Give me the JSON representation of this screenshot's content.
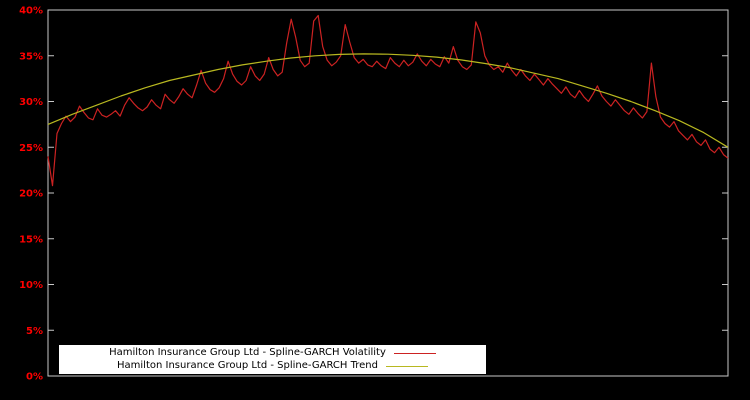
{
  "chart_data": {
    "type": "line",
    "title": "",
    "xlabel": "",
    "ylabel": "",
    "ylim": [
      0,
      40
    ],
    "yticks": [
      0,
      5,
      10,
      15,
      20,
      25,
      30,
      35,
      40
    ],
    "ytick_suffix": "%",
    "grid": "off",
    "legend_position": "bottom-center",
    "background_color": "#000000",
    "border_color": "#c8c8c8",
    "tick_label_color": "#ff0000",
    "legend_background": "#ffffff",
    "series": [
      {
        "name": "Hamilton Insurance Group Ltd - Spline-GARCH Volatility",
        "color": "#cc2222",
        "values": [
          24.0,
          20.8,
          26.5,
          27.6,
          28.4,
          27.8,
          28.3,
          29.5,
          28.8,
          28.2,
          28.0,
          29.2,
          28.5,
          28.3,
          28.6,
          29.0,
          28.4,
          29.6,
          30.4,
          29.8,
          29.3,
          29.0,
          29.4,
          30.2,
          29.6,
          29.2,
          30.8,
          30.2,
          29.8,
          30.5,
          31.4,
          30.8,
          30.4,
          31.8,
          33.4,
          32.0,
          31.3,
          31.0,
          31.5,
          32.5,
          34.4,
          33.0,
          32.2,
          31.8,
          32.3,
          33.8,
          32.8,
          32.3,
          33.0,
          34.8,
          33.5,
          32.8,
          33.2,
          36.4,
          39.0,
          37.0,
          34.5,
          33.8,
          34.2,
          38.8,
          39.4,
          36.0,
          34.5,
          33.9,
          34.3,
          35.0,
          38.4,
          36.5,
          34.8,
          34.2,
          34.6,
          34.0,
          33.8,
          34.4,
          33.9,
          33.6,
          34.8,
          34.2,
          33.8,
          34.5,
          33.9,
          34.3,
          35.2,
          34.4,
          33.9,
          34.6,
          34.1,
          33.8,
          34.9,
          34.2,
          36.0,
          34.5,
          33.8,
          33.5,
          34.0,
          38.7,
          37.5,
          35.0,
          34.0,
          33.5,
          33.8,
          33.2,
          34.2,
          33.4,
          32.8,
          33.5,
          32.8,
          32.3,
          33.0,
          32.4,
          31.8,
          32.5,
          31.9,
          31.4,
          30.9,
          31.6,
          30.8,
          30.4,
          31.2,
          30.5,
          30.0,
          30.8,
          31.7,
          30.6,
          30.0,
          29.5,
          30.2,
          29.6,
          29.0,
          28.6,
          29.3,
          28.7,
          28.2,
          28.9,
          34.2,
          30.5,
          28.3,
          27.6,
          27.2,
          27.8,
          26.8,
          26.3,
          25.8,
          26.4,
          25.6,
          25.2,
          25.8,
          24.8,
          24.4,
          25.0,
          24.2,
          23.8
        ]
      },
      {
        "name": "Hamilton Insurance Group Ltd - Spline-GARCH Trend",
        "color": "#b8b820",
        "values": [
          27.5,
          28.6,
          29.6,
          30.6,
          31.5,
          32.3,
          32.9,
          33.5,
          34.0,
          34.4,
          34.75,
          35.0,
          35.15,
          35.2,
          35.17,
          35.05,
          34.85,
          34.55,
          34.15,
          33.7,
          33.1,
          32.5,
          31.7,
          30.9,
          30.0,
          29.0,
          27.9,
          26.6,
          25.0
        ]
      }
    ]
  }
}
